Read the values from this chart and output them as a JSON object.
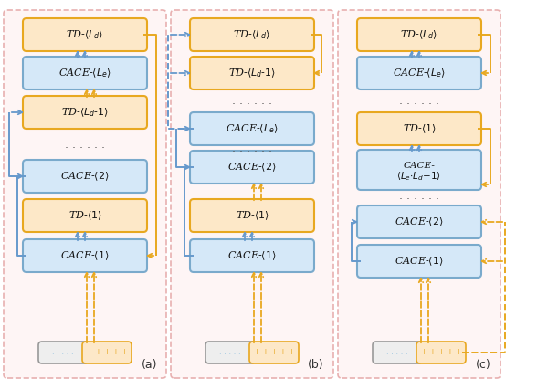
{
  "bg_color": "#ffffff",
  "panel_bg": "#fef5f5",
  "panel_border_color": "#e8b0b0",
  "td_fill": "#fde8c8",
  "td_edge": "#e8a820",
  "cace_fill": "#d5e8f8",
  "cace_edge": "#7aaacc",
  "input_gray_fill": "#eeeeee",
  "input_gray_edge": "#999999",
  "input_gold_fill": "#fde8c8",
  "input_gold_edge": "#e8a820",
  "arrow_blue": "#6699cc",
  "arrow_gold": "#e8a820",
  "dot_color": "#555555",
  "label_color": "#222222",
  "panel_labels": [
    "(a)",
    "(b)",
    "(c)"
  ],
  "fig_w": 600,
  "fig_h": 426
}
